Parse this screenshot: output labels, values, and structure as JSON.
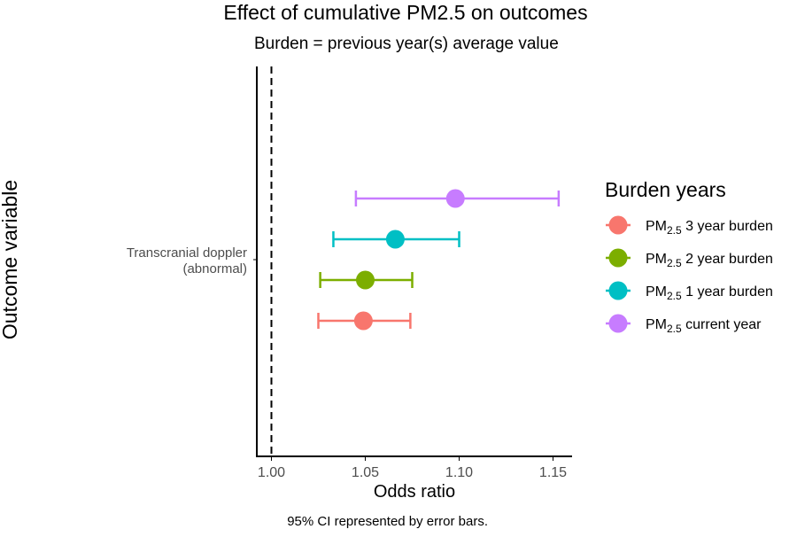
{
  "chart_data": {
    "type": "scatter",
    "title": "Effect of cumulative PM2.5 on outcomes",
    "subtitle": "Burden = previous year(s) average value",
    "xlabel": "Odds ratio",
    "ylabel": "Outcome variable",
    "caption": "95% CI represented by error bars.",
    "xlim": [
      0.993,
      1.16
    ],
    "xticks": [
      "1.00",
      "1.05",
      "1.10",
      "1.15"
    ],
    "reference_line": {
      "x": 1.0,
      "style": "dashed"
    },
    "categories": [
      "Transcranial doppler",
      "(abnormal)"
    ],
    "legend": {
      "title": "Burden years",
      "placement": "right"
    },
    "grid": false,
    "series": [
      {
        "name": "PM2.5 3 year burden",
        "label_main": "PM",
        "label_sub": "2.5",
        "label_rest": " 3 year burden",
        "color": "#F8766D",
        "or": 1.049,
        "lo": 1.025,
        "hi": 1.074
      },
      {
        "name": "PM2.5 2 year burden",
        "label_main": "PM",
        "label_sub": "2.5",
        "label_rest": " 2 year burden",
        "color": "#7CAE00",
        "or": 1.05,
        "lo": 1.026,
        "hi": 1.075
      },
      {
        "name": "PM2.5 1 year burden",
        "label_main": "PM",
        "label_sub": "2.5",
        "label_rest": " 1 year burden",
        "color": "#00BFC4",
        "or": 1.066,
        "lo": 1.033,
        "hi": 1.1
      },
      {
        "name": "PM2.5 current year",
        "label_main": "PM",
        "label_sub": "2.5",
        "label_rest": " current year",
        "color": "#C77CFF",
        "or": 1.098,
        "lo": 1.045,
        "hi": 1.153
      }
    ]
  }
}
